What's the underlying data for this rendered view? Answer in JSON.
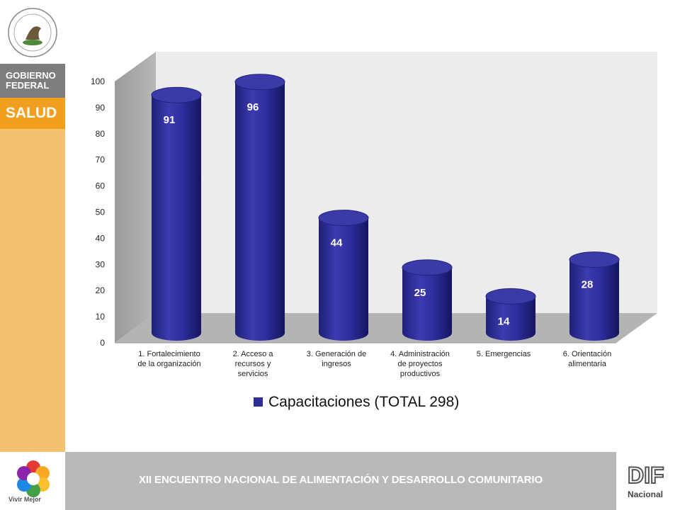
{
  "sidebar": {
    "gobierno_line1": "GOBIERNO",
    "gobierno_line2": "FEDERAL",
    "salud": "SALUD"
  },
  "footer": {
    "title": "XII ENCUENTRO NACIONAL DE ALIMENTACIÓN Y DESARROLLO COMUNITARIO",
    "vivir_mejor": "Vivir Mejor"
  },
  "chart_data": {
    "type": "bar",
    "style": "3d-cylinder",
    "categories": [
      [
        "1. Fortalecimiento",
        "de la organización"
      ],
      [
        "2. Acceso a",
        "recursos y",
        "servicios"
      ],
      [
        "3. Generación de",
        "ingresos"
      ],
      [
        "4. Administración",
        "de proyectos",
        "productivos"
      ],
      [
        "5. Emergencias"
      ],
      [
        "6. Orientación",
        "alimentaria"
      ]
    ],
    "series": [
      {
        "name": "Capacitaciones (TOTAL 298)",
        "values": [
          91,
          96,
          44,
          25,
          14,
          28
        ],
        "color": "#2e2e96"
      }
    ],
    "ylim": [
      0,
      100
    ],
    "yticks": [
      0,
      10,
      20,
      30,
      40,
      50,
      60,
      70,
      80,
      90,
      100
    ],
    "legend": "bottom",
    "data_labels": true,
    "grid": false
  }
}
